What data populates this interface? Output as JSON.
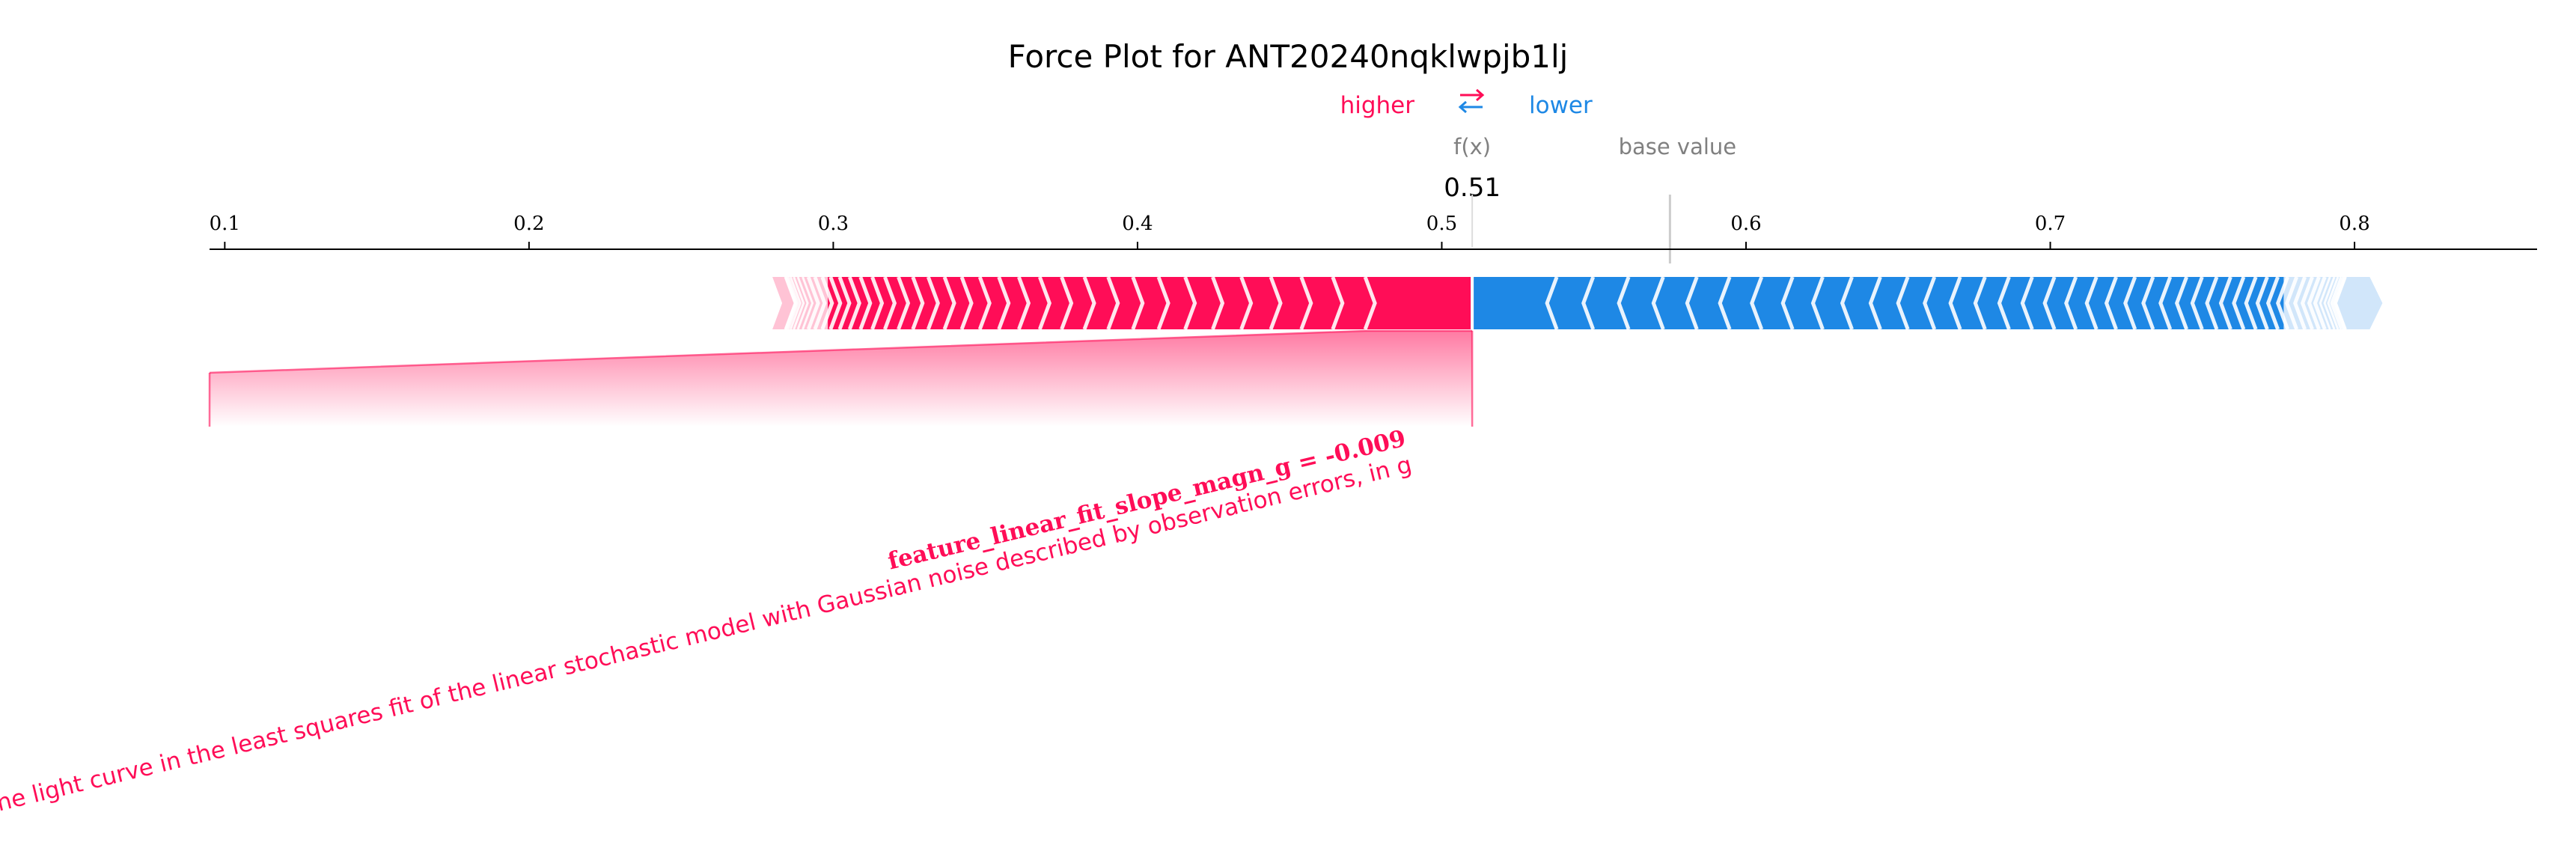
{
  "chart_data": {
    "type": "force",
    "title": "Force Plot for ANT20240nqklwpjb1lj",
    "legend": {
      "higher_label": "higher",
      "lower_label": "lower",
      "placement": "top-center",
      "arrows_icon": "swap-arrows-icon"
    },
    "fx_label": "f(x)",
    "fx_value": 0.51,
    "fx_value_text": "0.51",
    "base_value_label": "base value",
    "base_value": 0.575,
    "xlim": [
      0.095,
      0.86
    ],
    "ticks": [
      {
        "value": 0.1,
        "label": "0.1"
      },
      {
        "value": 0.2,
        "label": "0.2"
      },
      {
        "value": 0.3,
        "label": "0.3"
      },
      {
        "value": 0.4,
        "label": "0.4"
      },
      {
        "value": 0.5,
        "label": "0.5"
      },
      {
        "value": 0.6,
        "label": "0.6"
      },
      {
        "value": 0.7,
        "label": "0.7"
      },
      {
        "value": 0.8,
        "label": "0.8"
      }
    ],
    "positive_push": {
      "start": 0.28,
      "end": 0.51
    },
    "negative_push": {
      "start": 0.51,
      "end": 0.805
    },
    "highlighted_feature": {
      "name": "feature_linear_fit_slope_magn_g",
      "value": "-0.009",
      "label": "feature_linear_fit_slope_magn_g = -0.009",
      "description": "The slope of the light curve in the least squares fit of the linear stochastic model with Gaussian noise described by observation errors, in g",
      "range": [
        0.475,
        0.51
      ],
      "direction": "higher"
    },
    "colors": {
      "positive": "#ff0d57",
      "positive_light": "#ffc3d5",
      "negative": "#1e88e5",
      "negative_light": "#d1e6fa",
      "text_gray": "#808080"
    }
  }
}
